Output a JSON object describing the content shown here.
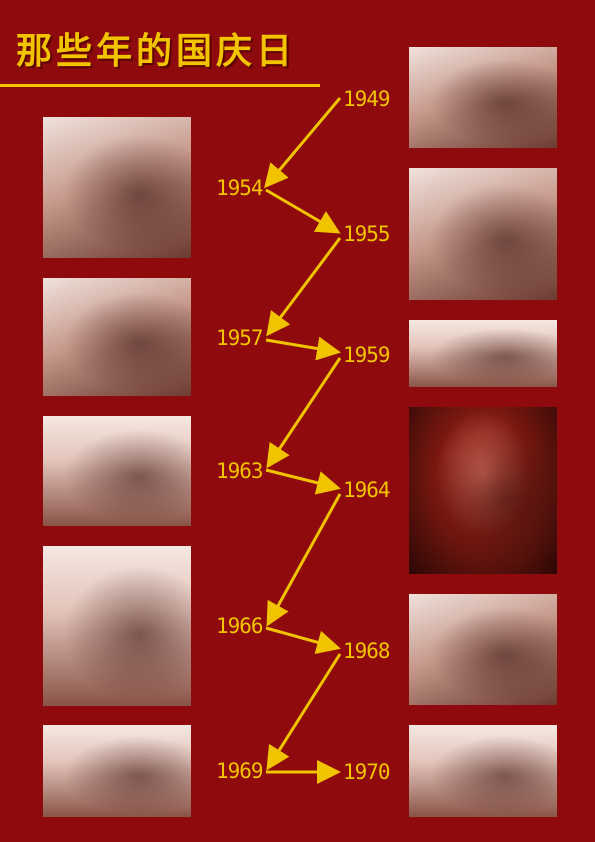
{
  "title": "那些年的国庆日",
  "colors": {
    "background": "#8e0a0d",
    "accent": "#f2c400"
  },
  "years": {
    "y1949": "1949",
    "y1954": "1954",
    "y1955": "1955",
    "y1957": "1957",
    "y1959": "1959",
    "y1963": "1963",
    "y1964": "1964",
    "y1966": "1966",
    "y1968": "1968",
    "y1969": "1969",
    "y1970": "1970"
  }
}
